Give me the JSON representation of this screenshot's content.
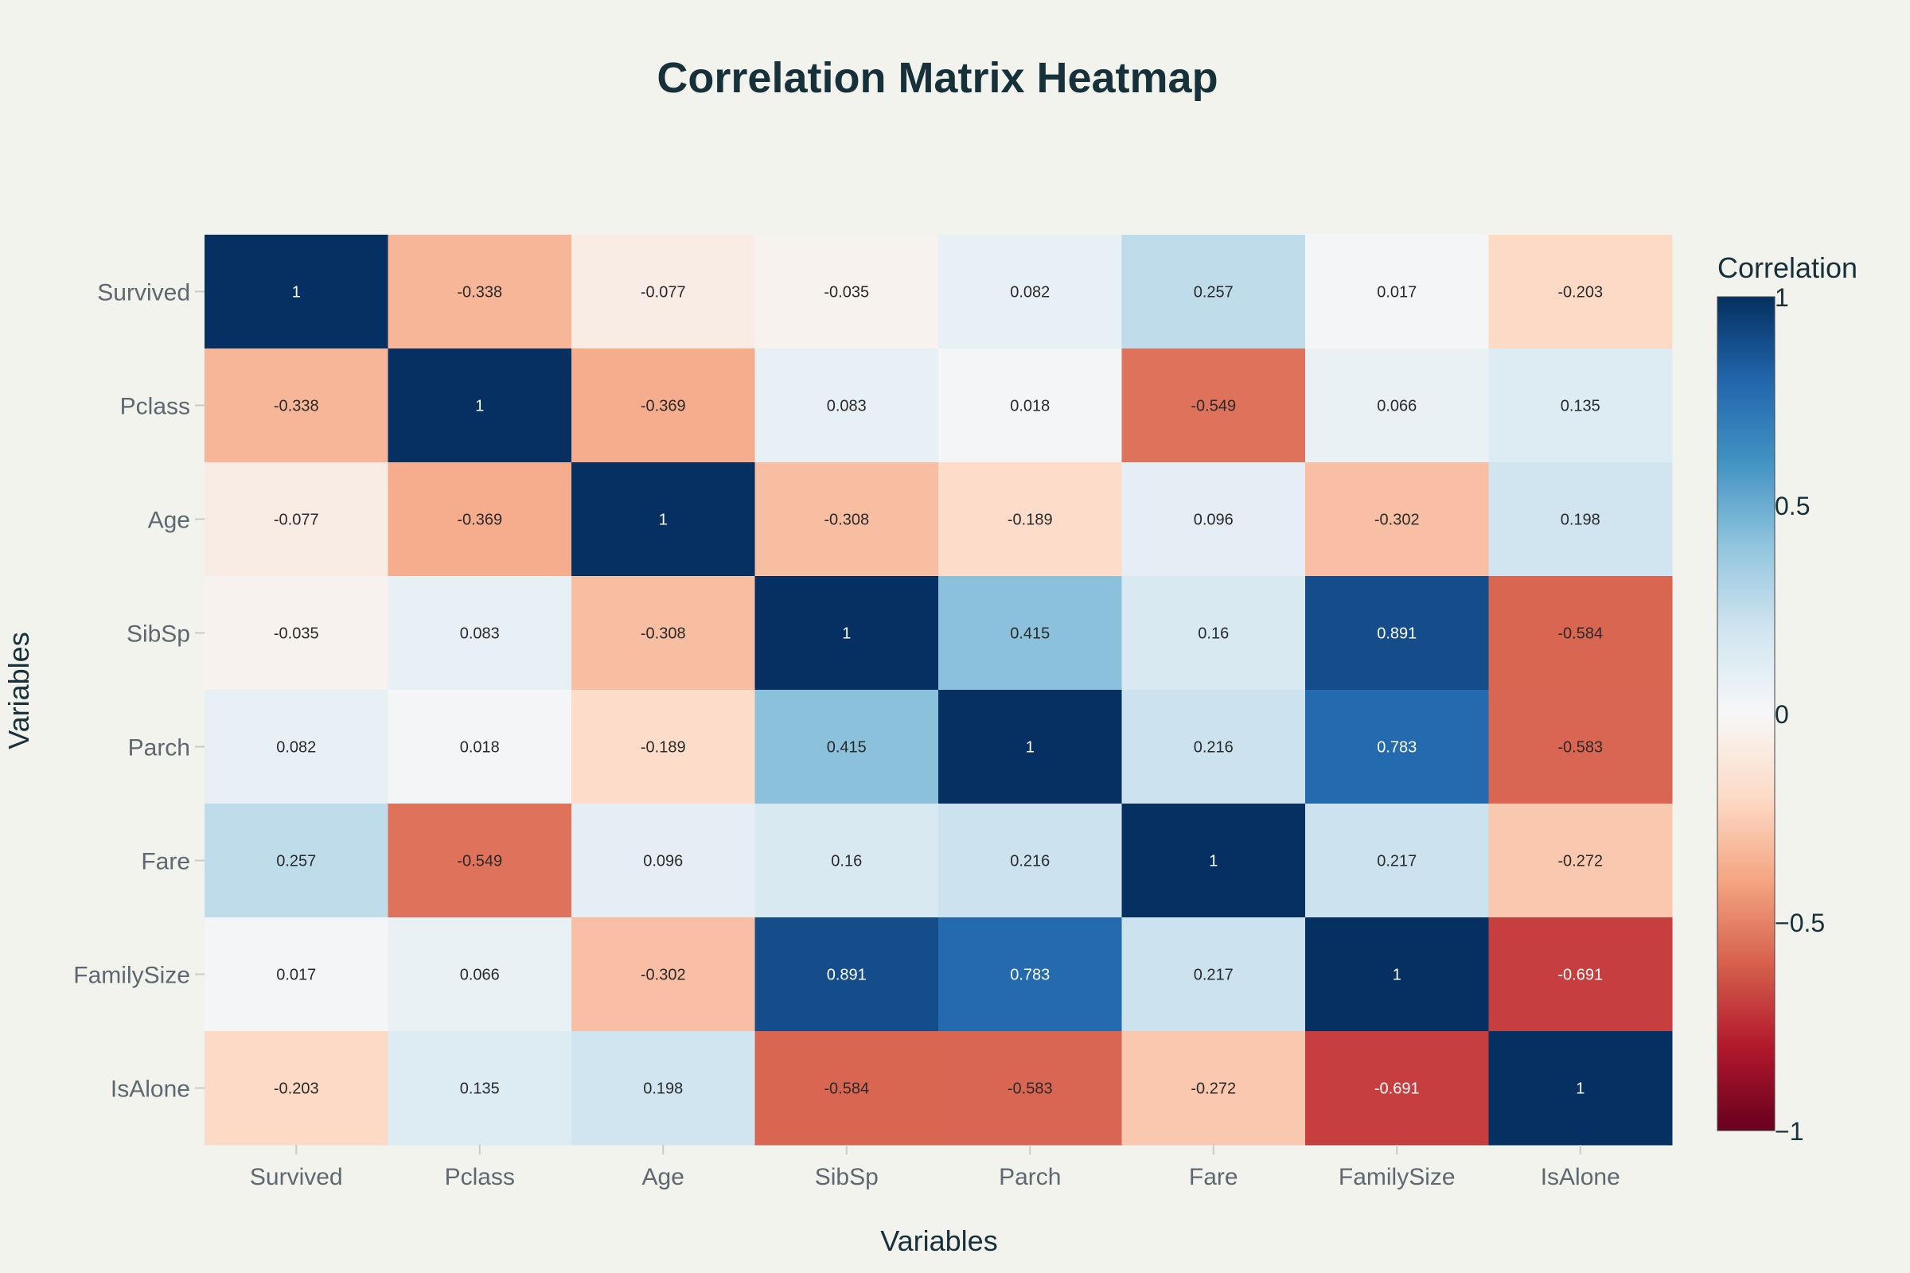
{
  "chart_data": {
    "type": "heatmap",
    "title": "Correlation Matrix Heatmap",
    "xlabel": "Variables",
    "ylabel": "Variables",
    "x_categories": [
      "Survived",
      "Pclass",
      "Age",
      "SibSp",
      "Parch",
      "Fare",
      "FamilySize",
      "IsAlone"
    ],
    "y_categories": [
      "Survived",
      "Pclass",
      "Age",
      "SibSp",
      "Parch",
      "Fare",
      "FamilySize",
      "IsAlone"
    ],
    "values": [
      [
        1,
        -0.338,
        -0.077,
        -0.035,
        0.082,
        0.257,
        0.017,
        -0.203
      ],
      [
        -0.338,
        1,
        -0.369,
        0.083,
        0.018,
        -0.549,
        0.066,
        0.135
      ],
      [
        -0.077,
        -0.369,
        1,
        -0.308,
        -0.189,
        0.096,
        -0.302,
        0.198
      ],
      [
        -0.035,
        0.083,
        -0.308,
        1,
        0.415,
        0.16,
        0.891,
        -0.584
      ],
      [
        0.082,
        0.018,
        -0.189,
        0.415,
        1,
        0.216,
        0.783,
        -0.583
      ],
      [
        0.257,
        -0.549,
        0.096,
        0.16,
        0.216,
        1,
        0.217,
        -0.272
      ],
      [
        0.017,
        0.066,
        -0.302,
        0.891,
        0.783,
        0.217,
        1,
        -0.691
      ],
      [
        -0.203,
        0.135,
        0.198,
        -0.584,
        -0.583,
        -0.272,
        -0.691,
        1
      ]
    ],
    "colorscale": "RdBu",
    "zmin": -1,
    "zmax": 1,
    "colorbar": {
      "title": "Correlation",
      "ticks": [
        1,
        0.5,
        0,
        -0.5,
        -1
      ],
      "tick_labels": [
        "1",
        "0.5",
        "0",
        "−0.5",
        "−1"
      ]
    },
    "show_values": true
  },
  "colors": {
    "background": "#f3f3ee",
    "title": "#16313a",
    "tick_label": "#5d6870"
  }
}
